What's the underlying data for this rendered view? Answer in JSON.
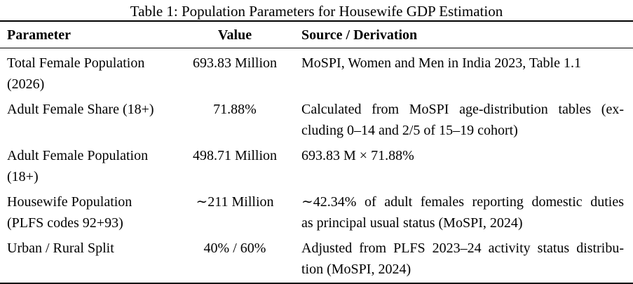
{
  "title": "Table 1: Population Parameters for Housewife GDP Estimation",
  "colors": {
    "text": "#000000",
    "background": "#ffffff",
    "rule": "#000000"
  },
  "table": {
    "columns": [
      "Parameter",
      "Value",
      "Source / Derivation"
    ],
    "rows": [
      {
        "parameter_lines": [
          "Total Female Population",
          "(2026)"
        ],
        "value": "693.83 Million",
        "source_lines": [
          "MoSPI, Women and Men in India 2023, Table 1.1"
        ]
      },
      {
        "parameter_lines": [
          "Adult Female Share (18+)"
        ],
        "value": "71.88%",
        "source_lines": [
          "Calculated from MoSPI age-distribution tables (ex-",
          "cluding 0–14 and 2/5 of 15–19 cohort)"
        ]
      },
      {
        "parameter_lines": [
          "Adult Female Population",
          "(18+)"
        ],
        "value": "498.71 Million",
        "source_lines": [
          "693.83 M × 71.88%"
        ]
      },
      {
        "parameter_lines": [
          "Housewife Population",
          "(PLFS codes 92+93)"
        ],
        "value": "∼211 Million",
        "source_lines": [
          "∼42.34% of adult females reporting domestic duties",
          "as principal usual status (MoSPI, 2024)"
        ]
      },
      {
        "parameter_lines": [
          "Urban / Rural Split"
        ],
        "value": "40% / 60%",
        "source_lines": [
          "Adjusted from PLFS 2023–24 activity status distribu-",
          "tion (MoSPI, 2024)"
        ]
      }
    ]
  }
}
